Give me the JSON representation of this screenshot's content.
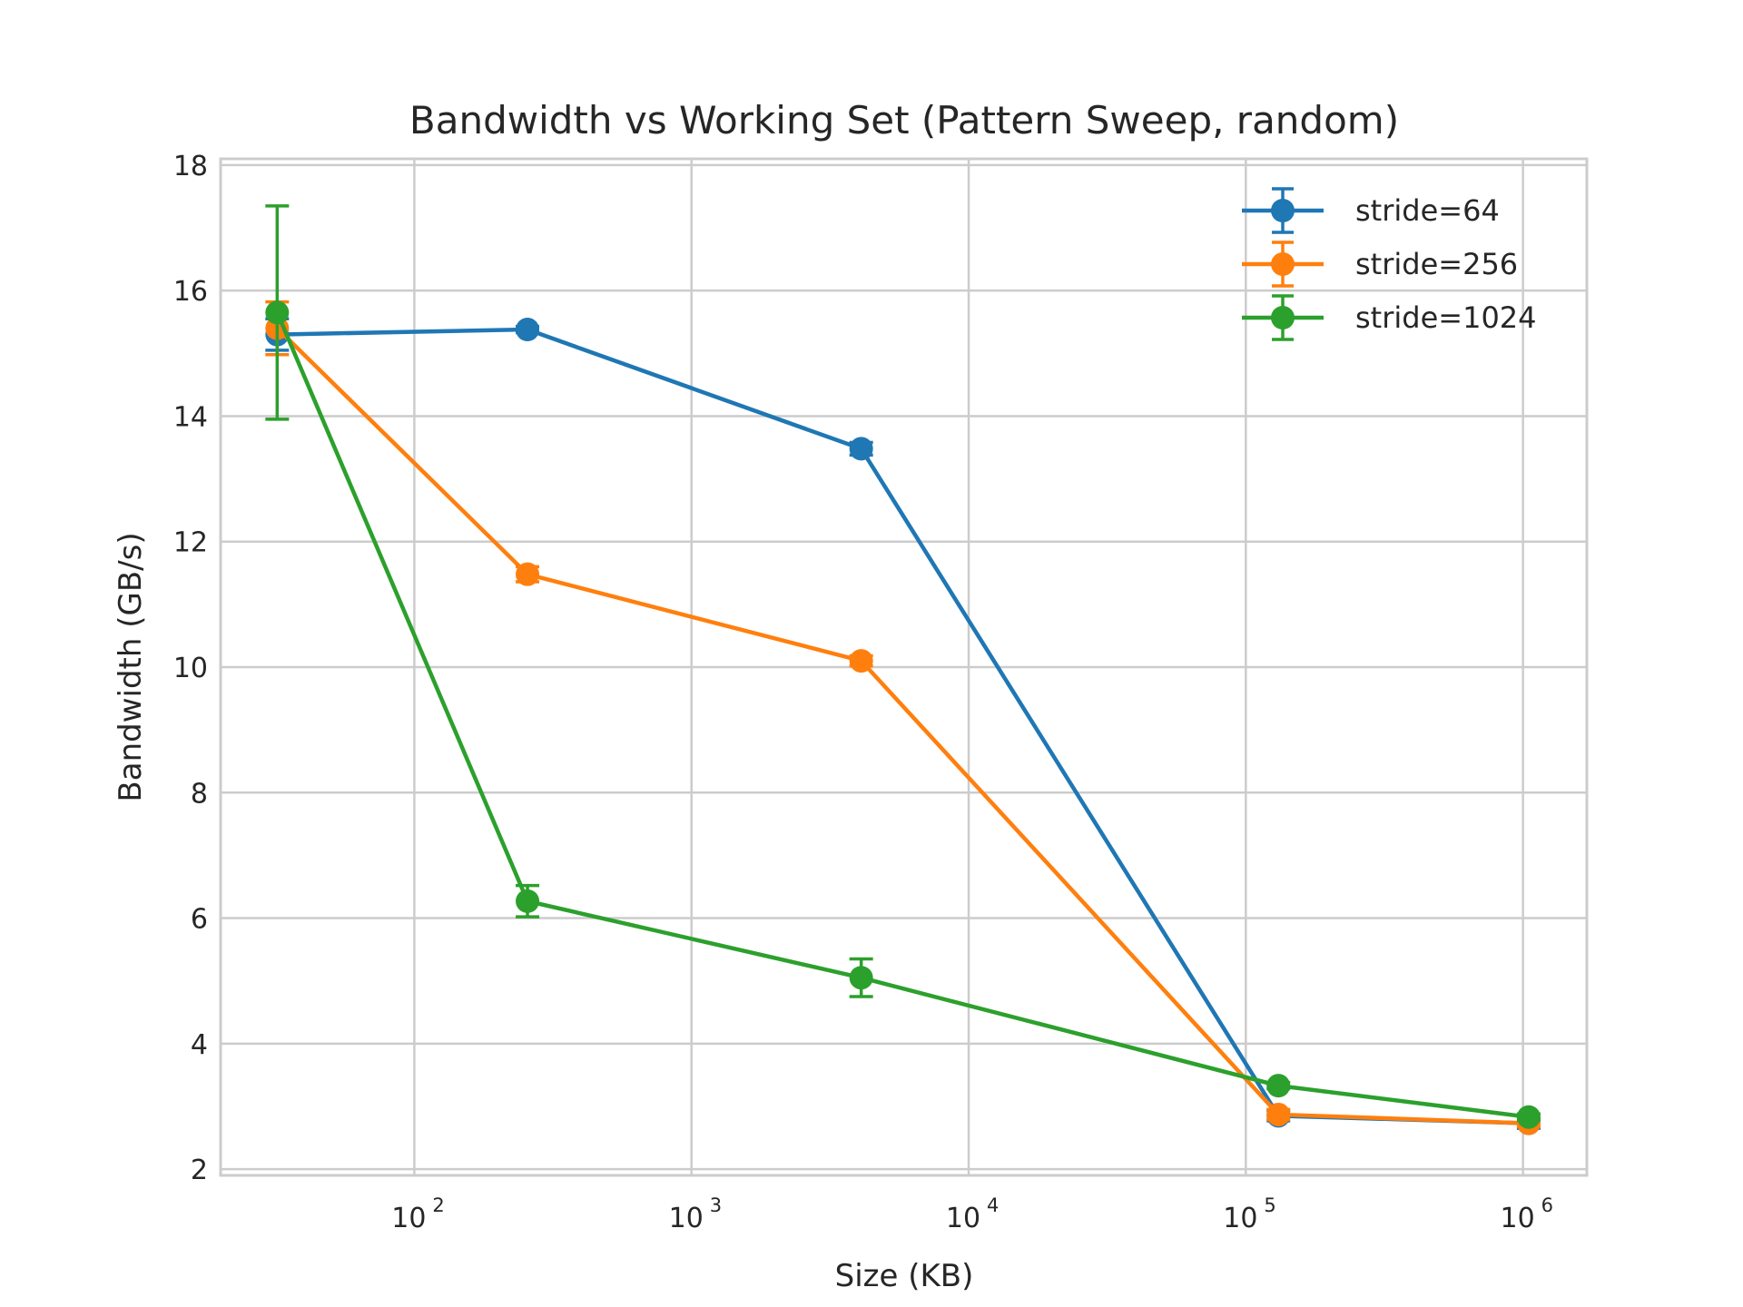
{
  "chart_data": {
    "type": "line",
    "title": "Bandwidth vs Working Set (Pattern Sweep, random)",
    "xlabel": "Size (KB)",
    "ylabel": "Bandwidth (GB/s)",
    "xscale": "log",
    "xlim": [
      20,
      1700000
    ],
    "ylim": [
      1.9,
      18.1
    ],
    "xticks": [
      {
        "value": 100,
        "base": "10",
        "exp": "2"
      },
      {
        "value": 1000,
        "base": "10",
        "exp": "3"
      },
      {
        "value": 10000,
        "base": "10",
        "exp": "4"
      },
      {
        "value": 100000,
        "base": "10",
        "exp": "5"
      },
      {
        "value": 1000000,
        "base": "10",
        "exp": "6"
      }
    ],
    "yticks": [
      2,
      4,
      6,
      8,
      10,
      12,
      14,
      16,
      18
    ],
    "grid": true,
    "legend_position": "top-right",
    "x": [
      32,
      256,
      4096,
      131072,
      1048576
    ],
    "series": [
      {
        "name": "stride=64",
        "color": "#1f77b4",
        "values": [
          15.3,
          15.38,
          13.48,
          2.85,
          2.73
        ],
        "errors": [
          0.25,
          0.05,
          0.1,
          0.08,
          0.08
        ]
      },
      {
        "name": "stride=256",
        "color": "#ff7f0e",
        "values": [
          15.4,
          11.48,
          10.1,
          2.87,
          2.73
        ],
        "errors": [
          0.42,
          0.12,
          0.08,
          0.08,
          0.05
        ]
      },
      {
        "name": "stride=1024",
        "color": "#2ca02c",
        "values": [
          15.65,
          6.27,
          5.05,
          3.33,
          2.83
        ],
        "errors": [
          1.7,
          0.25,
          0.3,
          0.05,
          0.05
        ]
      }
    ]
  }
}
